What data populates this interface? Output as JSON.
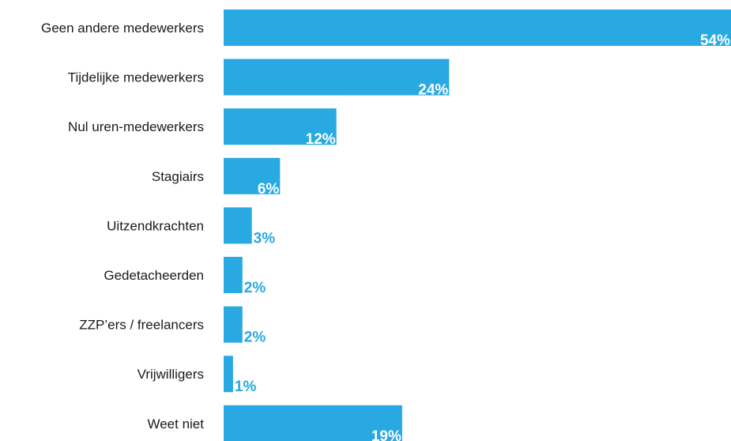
{
  "chart_data": {
    "type": "bar",
    "orientation": "horizontal",
    "categories": [
      "Geen andere medewerkers",
      "Tijdelijke medewerkers",
      "Nul uren-medewerkers",
      "Stagiairs",
      "Uitzendkrachten",
      "Gedetacheerden",
      "ZZP’ers / freelancers",
      "Vrijwilligers",
      "Weet niet"
    ],
    "values": [
      54,
      24,
      12,
      6,
      3,
      2,
      2,
      1,
      19
    ],
    "value_labels": [
      "54%",
      "24%",
      "12%",
      "6%",
      "3%",
      "2%",
      "2%",
      "1%",
      "19%"
    ],
    "title": "",
    "xlabel": "",
    "ylabel": "",
    "xlim": [
      0,
      54
    ],
    "grid": false,
    "legend": "none",
    "bar_color": "#29a9e1",
    "label_inside_color": "#ffffff",
    "label_outside_color": "#29a9e1"
  }
}
